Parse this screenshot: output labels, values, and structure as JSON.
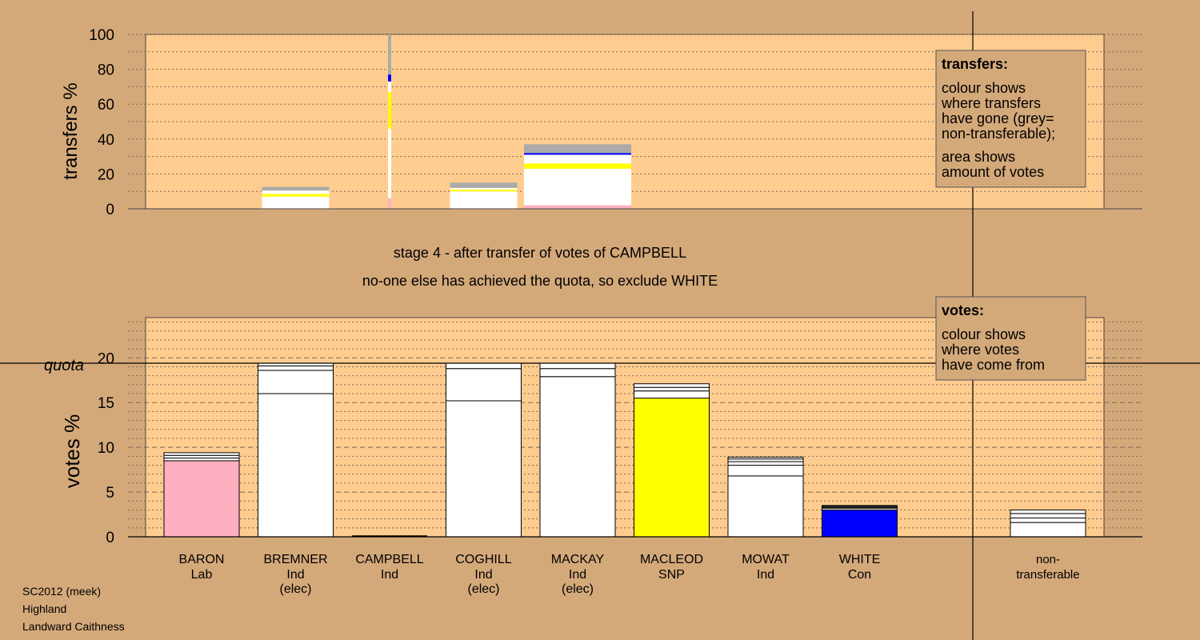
{
  "colors": {
    "background": "#d4a97a",
    "plot_bg": "#ffcc8f",
    "baron": "#ffb0c0",
    "white_con": "#0000ff",
    "macleod": "#ffff00",
    "ind": "#ffffff",
    "nontransferable": "#aaaaaa"
  },
  "texts": {
    "stage_line1": "stage 4 - after transfer of votes of CAMPBELL",
    "stage_line2": "no-one else has achieved the quota, so exclude WHITE",
    "quota_label": "quota",
    "footer": [
      "SC2012 (meek)",
      "Highland",
      "Landward Caithness"
    ]
  },
  "legend_transfers": {
    "title": "transfers:",
    "lines": [
      "colour shows",
      "where transfers",
      "have gone (grey=",
      "non-transferable);",
      "area shows",
      "amount of votes"
    ]
  },
  "legend_votes": {
    "title": "votes:",
    "lines": [
      "colour shows",
      "where votes",
      "have come from"
    ]
  },
  "chart_data": [
    {
      "type": "bar",
      "ylabel": "transfers %",
      "ylim": [
        0,
        100
      ],
      "yticks": [
        0,
        20,
        40,
        60,
        80,
        100
      ],
      "grid": "dotted",
      "candidates": [
        "BARON",
        "BREMNER",
        "CAMPBELL",
        "COGHILL",
        "MACKAY",
        "MACLEOD",
        "MOWAT",
        "WHITE"
      ],
      "transfer_bars": [
        {
          "candidate": "BREMNER",
          "segments": [
            {
              "color": "#ffffff",
              "value": 7
            },
            {
              "color": "#ffff00",
              "value": 1.5
            },
            {
              "color": "#ffffff",
              "value": 2
            },
            {
              "color": "#aaaaaa",
              "value": 2
            }
          ]
        },
        {
          "candidate": "CAMPBELL",
          "segments": [
            {
              "color": "#ffb0c0",
              "value": 6
            },
            {
              "color": "#ffffff",
              "value": 40
            },
            {
              "color": "#ffff00",
              "value": 21
            },
            {
              "color": "#ffffff",
              "value": 6
            },
            {
              "color": "#0000ff",
              "value": 4
            },
            {
              "color": "#aaaaaa",
              "value": 23
            }
          ]
        },
        {
          "candidate": "COGHILL",
          "segments": [
            {
              "color": "#ffffff",
              "value": 10
            },
            {
              "color": "#ffff00",
              "value": 1
            },
            {
              "color": "#ffffff",
              "value": 1
            },
            {
              "color": "#aaaaaa",
              "value": 3
            }
          ]
        },
        {
          "candidate": "MACKAY",
          "segments": [
            {
              "color": "#ffb0c0",
              "value": 2
            },
            {
              "color": "#ffffff",
              "value": 21
            },
            {
              "color": "#ffff00",
              "value": 3
            },
            {
              "color": "#ffffff",
              "value": 5
            },
            {
              "color": "#0000ff",
              "value": 1
            },
            {
              "color": "#aaaaaa",
              "value": 5
            }
          ]
        }
      ]
    },
    {
      "type": "bar",
      "ylabel": "votes %",
      "ylim": [
        0,
        24
      ],
      "yticks": [
        0,
        5,
        10,
        15,
        20
      ],
      "quota": 19.4,
      "grid": "dashed",
      "categories": [
        {
          "name": "BARON",
          "party": "Lab",
          "elec": ""
        },
        {
          "name": "BREMNER",
          "party": "Ind",
          "elec": "(elec)"
        },
        {
          "name": "CAMPBELL",
          "party": "Ind",
          "elec": ""
        },
        {
          "name": "COGHILL",
          "party": "Ind",
          "elec": "(elec)"
        },
        {
          "name": "MACKAY",
          "party": "Ind",
          "elec": "(elec)"
        },
        {
          "name": "MACLEOD",
          "party": "SNP",
          "elec": ""
        },
        {
          "name": "MOWAT",
          "party": "Ind",
          "elec": ""
        },
        {
          "name": "WHITE",
          "party": "Con",
          "elec": ""
        }
      ],
      "nontransferable": {
        "label1": "non-",
        "label2": "transferable",
        "segments": [
          1.6,
          0.5,
          0.5,
          0.4
        ]
      },
      "vote_bars": [
        {
          "segments": [
            {
              "color": "#ffb0c0",
              "value": 8.5
            },
            {
              "color": "#ffffff",
              "value": 0.3
            },
            {
              "color": "#ffffff",
              "value": 0.3
            },
            {
              "color": "#ffffff",
              "value": 0.3
            }
          ]
        },
        {
          "segments": [
            {
              "color": "#ffffff",
              "value": 16.0
            },
            {
              "color": "#ffffff",
              "value": 2.6
            },
            {
              "color": "#ffffff",
              "value": 0.5
            },
            {
              "color": "#ffffff",
              "value": 0.3
            }
          ]
        },
        {
          "segments": []
        },
        {
          "segments": [
            {
              "color": "#ffffff",
              "value": 15.2
            },
            {
              "color": "#ffffff",
              "value": 3.6
            },
            {
              "color": "#ffffff",
              "value": 0.6
            }
          ]
        },
        {
          "segments": [
            {
              "color": "#ffffff",
              "value": 17.9
            },
            {
              "color": "#ffffff",
              "value": 0.9
            },
            {
              "color": "#ffffff",
              "value": 0.6
            }
          ]
        },
        {
          "segments": [
            {
              "color": "#ffff00",
              "value": 15.5
            },
            {
              "color": "#ffffff",
              "value": 0.8
            },
            {
              "color": "#ffffff",
              "value": 0.4
            },
            {
              "color": "#ffffff",
              "value": 0.4
            }
          ]
        },
        {
          "segments": [
            {
              "color": "#ffffff",
              "value": 6.8
            },
            {
              "color": "#ffffff",
              "value": 1.2
            },
            {
              "color": "#ffffff",
              "value": 0.4
            },
            {
              "color": "#ffffff",
              "value": 0.3
            },
            {
              "color": "#ffffff",
              "value": 0.2
            }
          ]
        },
        {
          "segments": [
            {
              "color": "#0000ff",
              "value": 3.0
            },
            {
              "color": "#ffffff",
              "value": 0.2
            },
            {
              "color": "#222222",
              "value": 0.3
            }
          ]
        }
      ]
    }
  ]
}
